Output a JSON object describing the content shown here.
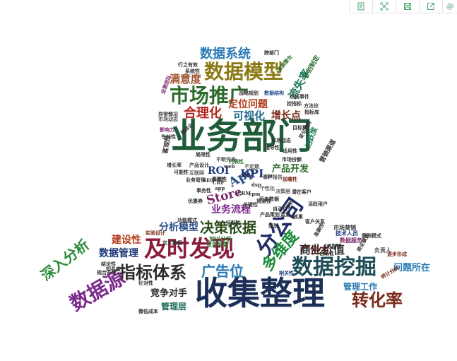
{
  "toolbar": {
    "buttons": [
      {
        "name": "data-view-icon"
      },
      {
        "name": "fullscreen-icon"
      },
      {
        "name": "save-image-icon"
      },
      {
        "name": "share-export-icon"
      },
      {
        "name": "settings-icon"
      }
    ]
  },
  "wordcloud": {
    "words": [
      {
        "text": "业务部门",
        "color": "#1f5c3a"
      },
      {
        "text": "收集整理",
        "color": "#1c2f57"
      },
      {
        "text": "及时发现",
        "color": "#8a1b3b"
      },
      {
        "text": "数据挖掘",
        "color": "#1f4d57"
      },
      {
        "text": "数据模型",
        "color": "#8b7a14"
      },
      {
        "text": "市场推广",
        "color": "#2d6b2d"
      },
      {
        "text": "分公司",
        "color": "#1e2a66"
      },
      {
        "text": "指标体系",
        "color": "#2c2c2c"
      },
      {
        "text": "数据源",
        "color": "#7b2a8a"
      },
      {
        "text": "转化率",
        "color": "#7a2a1a"
      },
      {
        "text": "深入分析",
        "color": "#2a8a3a"
      },
      {
        "text": "多维度",
        "color": "#1b8a3a"
      },
      {
        "text": "数据系统",
        "color": "#2a7ab5"
      },
      {
        "text": "广告位",
        "color": "#2a7ab5"
      },
      {
        "text": "决策依据",
        "color": "#2b4d1a"
      },
      {
        "text": "合理化",
        "color": "#b3261e"
      },
      {
        "text": "流失率",
        "color": "#1f7a5a"
      },
      {
        "text": "商业价值",
        "color": "#333333"
      },
      {
        "text": "App",
        "color": "#2a4d8a"
      },
      {
        "text": "Store",
        "color": "#7a2a6a"
      },
      {
        "text": "KPI",
        "color": "#1e3a7a"
      },
      {
        "text": "ROI",
        "color": "#1e3a7a"
      },
      {
        "text": "可视化",
        "color": "#1f6a8a"
      },
      {
        "text": "增长点",
        "color": "#7a2a1a"
      },
      {
        "text": "满意度",
        "color": "#a0522d"
      },
      {
        "text": "定位问题",
        "color": "#b03a1a"
      },
      {
        "text": "产品开发",
        "color": "#2a6b2a"
      },
      {
        "text": "业务流程",
        "color": "#7a2a8a"
      },
      {
        "text": "分析模型",
        "color": "#2a4d8a"
      },
      {
        "text": "广告主",
        "color": "#5a1a1a"
      },
      {
        "text": "建设性",
        "color": "#b03a1a"
      },
      {
        "text": "数据管理",
        "color": "#1e3a7a"
      },
      {
        "text": "竞争对手",
        "color": "#2a2a2a"
      },
      {
        "text": "管理层",
        "color": "#1f6a5a"
      },
      {
        "text": "管理工作",
        "color": "#2a7ab5"
      },
      {
        "text": "问题所在",
        "color": "#2a7ab5"
      },
      {
        "text": "市场动态",
        "color": "#555555"
      },
      {
        "text": "影响力",
        "color": "#7a2a6a"
      },
      {
        "text": "互联网",
        "color": "#555555"
      },
      {
        "text": "不断完善",
        "color": "#555555"
      },
      {
        "text": "代表性",
        "color": "#2a6b2a"
      },
      {
        "text": "不定期",
        "color": "#555555"
      },
      {
        "text": "事件报告",
        "color": "#555555"
      },
      {
        "text": "前瞻性",
        "color": "#7a2a1a"
      },
      {
        "text": "个性化",
        "color": "#555555"
      },
      {
        "text": "决策层",
        "color": "#555555"
      },
      {
        "text": "活跃度",
        "color": "#1f7a5a"
      },
      {
        "text": "市场营销",
        "color": "#333333"
      },
      {
        "text": "技术人员",
        "color": "#1e3a7a"
      },
      {
        "text": "数据服务",
        "color": "#7a2a6a"
      },
      {
        "text": "负责人",
        "color": "#555555"
      },
      {
        "text": "逐步形成",
        "color": "#7a2a1a"
      },
      {
        "text": "统计分析",
        "color": "#7a2a1a"
      },
      {
        "text": "结论性",
        "color": "#333333"
      },
      {
        "text": "知名度",
        "color": "#333333"
      },
      {
        "text": "规合开发",
        "color": "#333333"
      },
      {
        "text": "针对性",
        "color": "#333333"
      },
      {
        "text": "微低成本",
        "color": "#333333"
      },
      {
        "text": "定义数据",
        "color": "#333333"
      },
      {
        "text": "实验设计",
        "color": "#7a2a1a"
      },
      {
        "text": "功能模式",
        "color": "#333333"
      },
      {
        "text": "发现异常",
        "color": "#2a6b2a"
      },
      {
        "text": "加以分析",
        "color": "#2a6b2a"
      },
      {
        "text": "相关性",
        "color": "#1e3a7a"
      },
      {
        "text": "战略规划",
        "color": "#333333"
      },
      {
        "text": "数据结构",
        "color": "#2a4d8a"
      },
      {
        "text": "跨部门",
        "color": "#333333"
      },
      {
        "text": "资源整合",
        "color": "#2a6b2a"
      },
      {
        "text": "计划制定",
        "color": "#2a6b2a"
      },
      {
        "text": "系统性",
        "color": "#333333"
      },
      {
        "text": "运营团队",
        "color": "#7a2a6a"
      },
      {
        "text": "行之有效",
        "color": "#333333"
      },
      {
        "text": "方法论",
        "color": "#333333"
      },
      {
        "text": "指标库",
        "color": "#333333"
      },
      {
        "text": "异常情况",
        "color": "#333333"
      },
      {
        "text": "增长率",
        "color": "#333333"
      },
      {
        "text": "产品设计",
        "color": "#333333"
      },
      {
        "text": "可能性",
        "color": "#333333"
      },
      {
        "text": "业务管理",
        "color": "#333333"
      },
      {
        "text": "事务性",
        "color": "#333333"
      },
      {
        "text": "优惠券",
        "color": "#333333"
      },
      {
        "text": "历史数据",
        "color": "#333333"
      },
      {
        "text": "关键性",
        "color": "#333333"
      },
      {
        "text": "产品策划",
        "color": "#333333"
      },
      {
        "text": "CRM",
        "color": "#333333"
      },
      {
        "text": "SEO",
        "color": "#333333"
      },
      {
        "text": "app",
        "color": "#333333"
      },
      {
        "text": "dsp",
        "color": "#333333"
      },
      {
        "text": "cpc",
        "color": "#333333"
      },
      {
        "text": "cpm",
        "color": "#333333"
      },
      {
        "text": "CRF",
        "color": "#333333"
      },
      {
        "text": "UE",
        "color": "#333333"
      },
      {
        "text": "web",
        "color": "#333333"
      },
      {
        "text": "热线事件",
        "color": "#333333"
      },
      {
        "text": "控指标",
        "color": "#333333"
      },
      {
        "text": "变化趋势",
        "color": "#333333"
      },
      {
        "text": "市场动态",
        "color": "#333333"
      },
      {
        "text": "差异化",
        "color": "#333333"
      },
      {
        "text": "客观性",
        "color": "#333333"
      },
      {
        "text": "适用性",
        "color": "#333333"
      },
      {
        "text": "市场份额",
        "color": "#333333"
      },
      {
        "text": "局限性",
        "color": "#333333"
      },
      {
        "text": "目标群",
        "color": "#333333"
      },
      {
        "text": "营销渠道",
        "color": "#333333"
      },
      {
        "text": "专业性",
        "color": "#333333"
      },
      {
        "text": "指导性",
        "color": "#333333"
      },
      {
        "text": "预测性",
        "color": "#333333"
      },
      {
        "text": "可靠性",
        "color": "#333333"
      },
      {
        "text": "合法性",
        "color": "#333333"
      },
      {
        "text": "准确性",
        "color": "#333333"
      },
      {
        "text": "活跃性",
        "color": "#333333"
      },
      {
        "text": "审计",
        "color": "#333333"
      },
      {
        "text": "策划",
        "color": "#333333"
      },
      {
        "text": "监测",
        "color": "#333333"
      },
      {
        "text": "效果",
        "color": "#333333"
      },
      {
        "text": "客户关系",
        "color": "#333333"
      },
      {
        "text": "商业模式",
        "color": "#333333"
      },
      {
        "text": "案例模式",
        "color": "#333333"
      },
      {
        "text": "活跃用户",
        "color": "#333333"
      },
      {
        "text": "潜在客户",
        "color": "#333333"
      },
      {
        "text": "自动化",
        "color": "#333333"
      },
      {
        "text": "高效性",
        "color": "#333333"
      },
      {
        "text": "全面性",
        "color": "#333333"
      }
    ]
  }
}
